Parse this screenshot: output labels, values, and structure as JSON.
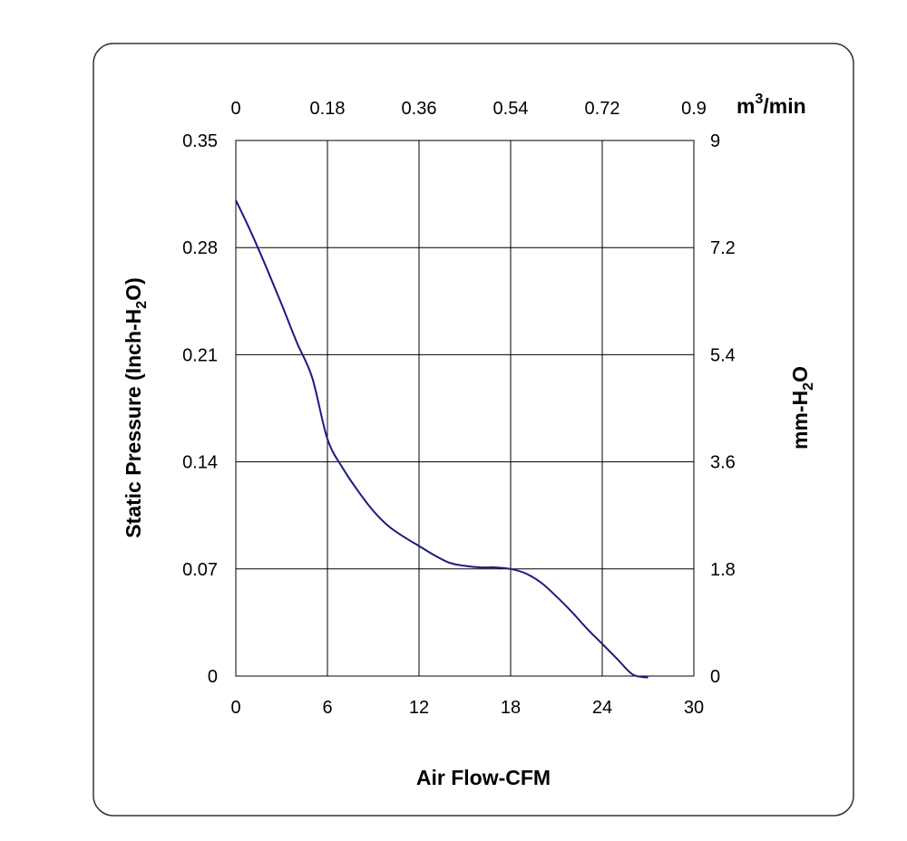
{
  "chart_data": {
    "type": "line",
    "x_axis": {
      "label": "Air Flow-CFM",
      "ticks": [
        "0",
        "6",
        "12",
        "18",
        "24",
        "30"
      ],
      "range": [
        0,
        30
      ]
    },
    "x2_axis": {
      "unit_base": "m",
      "unit_sup": "3",
      "unit_rest": "/min",
      "ticks": [
        "0",
        "0.18",
        "0.36",
        "0.54",
        "0.72",
        "0.9"
      ],
      "range": [
        0,
        0.9
      ]
    },
    "y_axis": {
      "label_part1": "Static Pressure (Inch-H",
      "label_sub": "2",
      "label_part2": "O)",
      "ticks": [
        "0",
        "0.07",
        "0.14",
        "0.21",
        "0.28",
        "0.35"
      ],
      "range": [
        0,
        0.35
      ]
    },
    "y2_axis": {
      "label_part1": "mm-H",
      "label_sub": "2",
      "label_part2": "O",
      "ticks": [
        "0",
        "1.8",
        "3.6",
        "5.4",
        "7.2",
        "9"
      ],
      "range": [
        0,
        9
      ]
    },
    "grid": true,
    "series": [
      {
        "color": "#1a1a80",
        "x": [
          0,
          1,
          2,
          3,
          4,
          5,
          6,
          7,
          8,
          9,
          10,
          11,
          12,
          13,
          14,
          15,
          16,
          17,
          18,
          19,
          20,
          21,
          22,
          23,
          24,
          25,
          26,
          27
        ],
        "y": [
          0.311,
          0.29,
          0.267,
          0.243,
          0.218,
          0.195,
          0.155,
          0.136,
          0.121,
          0.108,
          0.098,
          0.091,
          0.085,
          0.079,
          0.074,
          0.072,
          0.071,
          0.071,
          0.07,
          0.067,
          0.061,
          0.052,
          0.042,
          0.031,
          0.021,
          0.011,
          0.001,
          -0.001
        ]
      }
    ]
  }
}
